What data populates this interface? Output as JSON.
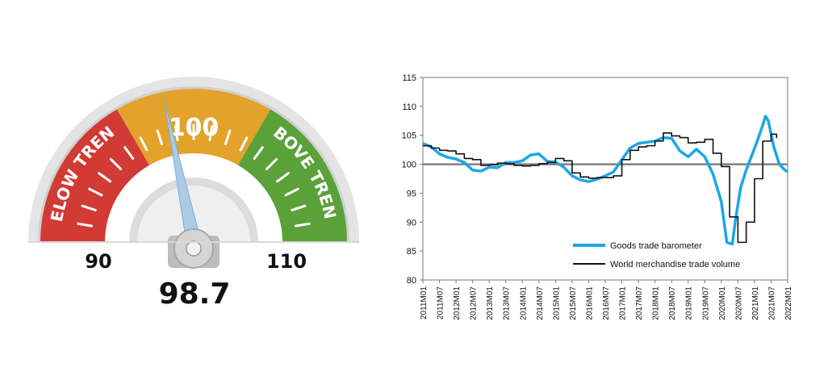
{
  "gauge": {
    "min_label": "90",
    "max_label": "110",
    "mid_label": "100",
    "value": 98.7,
    "value_label": "98.7",
    "below_text": "BELOW TREND",
    "above_text": "ABOVE TREND",
    "colors": {
      "below": "#d23a34",
      "mid": "#e3a22a",
      "above": "#5aa13a",
      "needle": "#a9cbe6"
    }
  },
  "chart_data": {
    "type": "line",
    "title": "",
    "xlabel": "",
    "ylabel": "",
    "ylim": [
      80,
      115
    ],
    "yticks": [
      "80",
      "85",
      "90",
      "95",
      "100",
      "105",
      "110",
      "115"
    ],
    "x_ticks": [
      "2011M01",
      "2011M07",
      "2012M01",
      "2012M07",
      "2013M01",
      "2013M07",
      "2014M01",
      "2014M07",
      "2015M01",
      "2015M07",
      "2016M01",
      "2016M07",
      "2017M01",
      "2017M07",
      "2018M01",
      "2018M07",
      "2019M01",
      "2019M07",
      "2020M01",
      "2020M07",
      "2021M01",
      "2021M07",
      "2022M01"
    ],
    "reference_line": 100,
    "legend_position": "bottom-right",
    "series": [
      {
        "name": "Goods trade barometer",
        "color": "#1aa7e8",
        "x": [
          "2011M01",
          "2011M04",
          "2011M07",
          "2011M10",
          "2012M01",
          "2012M04",
          "2012M07",
          "2012M10",
          "2013M01",
          "2013M04",
          "2013M07",
          "2013M10",
          "2014M01",
          "2014M04",
          "2014M07",
          "2014M10",
          "2015M01",
          "2015M04",
          "2015M07",
          "2015M10",
          "2016M01",
          "2016M04",
          "2016M07",
          "2016M10",
          "2017M01",
          "2017M04",
          "2017M07",
          "2017M10",
          "2018M01",
          "2018M04",
          "2018M07",
          "2018M10",
          "2019M01",
          "2019M04",
          "2019M07",
          "2019M10",
          "2020M01",
          "2020M03",
          "2020M05",
          "2020M06",
          "2020M08",
          "2020M10",
          "2020M12",
          "2021M02",
          "2021M04",
          "2021M05",
          "2021M06",
          "2021M08",
          "2021M10",
          "2021M12",
          "2022M01"
        ],
        "values": [
          103.6,
          103.0,
          101.8,
          101.2,
          100.9,
          100.3,
          99.0,
          98.8,
          99.5,
          99.4,
          100.3,
          100.3,
          100.6,
          101.6,
          101.8,
          100.5,
          100.4,
          99.5,
          98.0,
          97.3,
          97.0,
          97.4,
          98.0,
          98.7,
          100.8,
          102.8,
          103.6,
          103.8,
          104.0,
          104.6,
          104.5,
          102.3,
          101.3,
          102.6,
          101.3,
          98.3,
          93.5,
          86.5,
          86.2,
          90.0,
          96.0,
          99.0,
          101.5,
          104.0,
          106.8,
          108.3,
          107.5,
          103.0,
          100.0,
          99.0,
          98.7
        ]
      },
      {
        "name": "World merchandise trade volume",
        "color": "#111111",
        "x": [
          "2011M01",
          "2011M04",
          "2011M07",
          "2011M10",
          "2012M01",
          "2012M04",
          "2012M07",
          "2012M10",
          "2013M01",
          "2013M04",
          "2013M07",
          "2013M10",
          "2014M01",
          "2014M04",
          "2014M07",
          "2014M10",
          "2015M01",
          "2015M04",
          "2015M07",
          "2015M10",
          "2016M01",
          "2016M04",
          "2016M07",
          "2016M10",
          "2017M01",
          "2017M04",
          "2017M07",
          "2017M10",
          "2018M01",
          "2018M04",
          "2018M07",
          "2018M10",
          "2019M01",
          "2019M04",
          "2019M07",
          "2019M10",
          "2020M01",
          "2020M04",
          "2020M07",
          "2020M10",
          "2021M01",
          "2021M04",
          "2021M07",
          "2021M09"
        ],
        "values": [
          103.2,
          102.8,
          102.4,
          102.3,
          101.8,
          101.0,
          100.8,
          99.8,
          99.9,
          100.2,
          100.1,
          99.8,
          99.7,
          99.8,
          100.1,
          100.3,
          101.0,
          100.6,
          98.5,
          97.8,
          97.6,
          97.7,
          97.7,
          98.0,
          100.8,
          102.4,
          103.0,
          103.2,
          104.0,
          105.4,
          104.9,
          104.6,
          103.7,
          103.8,
          104.3,
          101.9,
          99.6,
          90.9,
          86.5,
          90.0,
          97.5,
          104.0,
          105.2,
          104.5
        ]
      }
    ]
  }
}
